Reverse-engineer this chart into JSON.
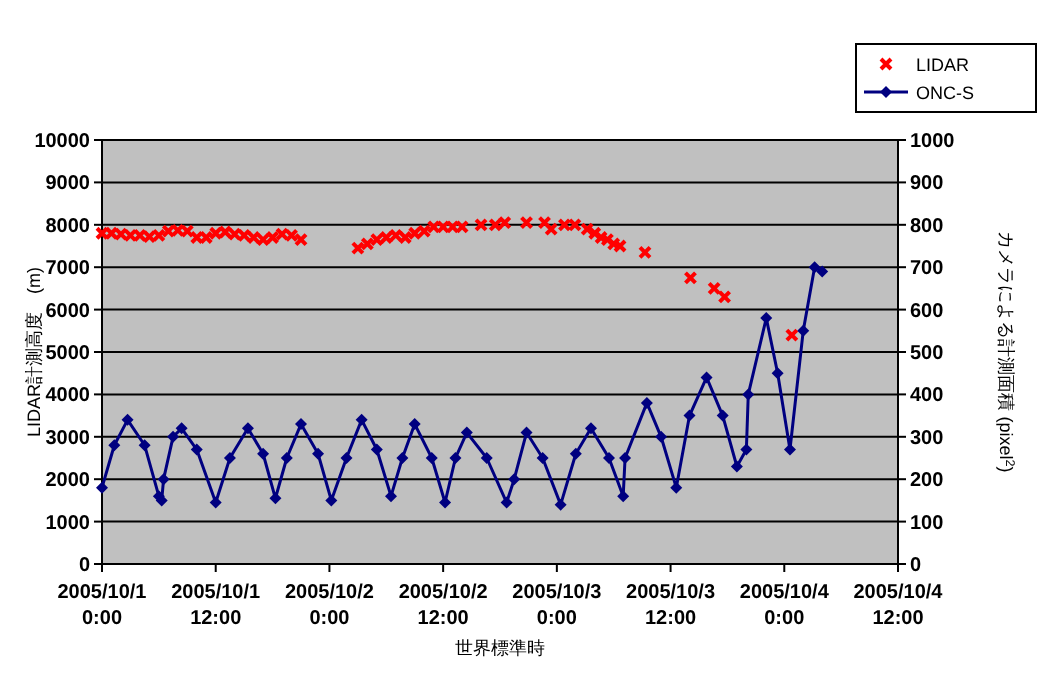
{
  "chart_data": {
    "type": "scatter",
    "xlabel": "世界標準時",
    "ylabel": "LIDAR計測高度　(m)",
    "y2label": "カメラによる計測面積 (pixel$^{2}$)",
    "xlim": [
      "2005-10-01T00:00",
      "2005-10-04T12:00"
    ],
    "xticks": [
      {
        "value": "2005-10-01T00:00",
        "label": "2005/10/1\n0:00"
      },
      {
        "value": "2005-10-01T12:00",
        "label": "2005/10/1\n12:00"
      },
      {
        "value": "2005-10-02T00:00",
        "label": "2005/10/2\n0:00"
      },
      {
        "value": "2005-10-02T12:00",
        "label": "2005/10/2\n12:00"
      },
      {
        "value": "2005-10-03T00:00",
        "label": "2005/10/3\n0:00"
      },
      {
        "value": "2005-10-03T12:00",
        "label": "2005/10/3\n12:00"
      },
      {
        "value": "2005-10-04T00:00",
        "label": "2005/10/4\n0:00"
      },
      {
        "value": "2005-10-04T12:00",
        "label": "2005/10/4\n12:00"
      }
    ],
    "ylim": [
      0,
      10000
    ],
    "yticks": [
      0,
      1000,
      2000,
      3000,
      4000,
      5000,
      6000,
      7000,
      8000,
      9000,
      10000
    ],
    "y2lim": [
      0,
      1000
    ],
    "y2ticks": [
      0,
      100,
      200,
      300,
      400,
      500,
      600,
      700,
      800,
      900,
      1000
    ],
    "grid": "y",
    "legend": "top right",
    "series": [
      {
        "name": "LIDAR",
        "type": "scatter",
        "marker": "cross",
        "color": "#ff0000",
        "x": [
          "2005-10-01T00:00",
          "2005-10-01T01:00",
          "2005-10-01T02:00",
          "2005-10-01T03:00",
          "2005-10-01T04:00",
          "2005-10-01T05:00",
          "2005-10-01T06:00",
          "2005-10-01T07:00",
          "2005-10-01T08:00",
          "2005-10-01T09:00",
          "2005-10-01T10:00",
          "2005-10-01T11:00",
          "2005-10-01T12:00",
          "2005-10-01T13:00",
          "2005-10-01T14:00",
          "2005-10-01T15:00",
          "2005-10-01T16:00",
          "2005-10-01T17:00",
          "2005-10-01T18:00",
          "2005-10-01T19:00",
          "2005-10-01T20:00",
          "2005-10-01T21:00",
          "2005-10-02T03:00",
          "2005-10-02T04:00",
          "2005-10-02T05:00",
          "2005-10-02T06:00",
          "2005-10-02T07:00",
          "2005-10-02T08:00",
          "2005-10-02T09:00",
          "2005-10-02T10:00",
          "2005-10-02T11:00",
          "2005-10-02T12:00",
          "2005-10-02T13:00",
          "2005-10-02T14:00",
          "2005-10-02T16:00",
          "2005-10-02T17:30",
          "2005-10-02T18:30",
          "2005-10-02T20:48",
          "2005-10-02T22:42",
          "2005-10-02T23:24",
          "2005-10-03T00:48",
          "2005-10-03T01:54",
          "2005-10-03T03:12",
          "2005-10-03T04:00",
          "2005-10-03T04:40",
          "2005-10-03T05:20",
          "2005-10-03T06:00",
          "2005-10-03T06:40",
          "2005-10-03T09:18",
          "2005-10-03T14:06",
          "2005-10-03T16:36",
          "2005-10-03T17:42",
          "2005-10-04T00:48"
        ],
        "values": [
          7800,
          7800,
          7780,
          7750,
          7750,
          7720,
          7750,
          7850,
          7870,
          7850,
          7700,
          7700,
          7800,
          7830,
          7780,
          7750,
          7700,
          7650,
          7700,
          7780,
          7750,
          7650,
          7450,
          7550,
          7650,
          7700,
          7750,
          7700,
          7800,
          7850,
          7950,
          7950,
          7950,
          7950,
          8000,
          8000,
          8050,
          8050,
          8050,
          7900,
          8000,
          8000,
          7900,
          7800,
          7700,
          7650,
          7550,
          7500,
          7350,
          6750,
          6500,
          6300,
          5400
        ]
      },
      {
        "name": "ONC-S",
        "type": "line",
        "axis": "y2",
        "marker": "diamond",
        "color": "#000080",
        "x": [
          "2005-10-01T00:00",
          "2005-10-01T01:18",
          "2005-10-01T02:42",
          "2005-10-01T04:30",
          "2005-10-01T06:00",
          "2005-10-01T06:18",
          "2005-10-01T06:30",
          "2005-10-01T07:30",
          "2005-10-01T08:24",
          "2005-10-01T10:00",
          "2005-10-01T12:00",
          "2005-10-01T13:30",
          "2005-10-01T15:24",
          "2005-10-01T17:00",
          "2005-10-01T18:18",
          "2005-10-01T19:30",
          "2005-10-01T21:00",
          "2005-10-01T22:48",
          "2005-10-02T00:12",
          "2005-10-02T01:48",
          "2005-10-02T03:24",
          "2005-10-02T05:00",
          "2005-10-02T06:30",
          "2005-10-02T07:42",
          "2005-10-02T09:00",
          "2005-10-02T10:48",
          "2005-10-02T12:12",
          "2005-10-02T13:18",
          "2005-10-02T14:30",
          "2005-10-02T16:36",
          "2005-10-02T18:42",
          "2005-10-02T19:30",
          "2005-10-02T20:48",
          "2005-10-02T22:30",
          "2005-10-03T00:24",
          "2005-10-03T02:00",
          "2005-10-03T03:36",
          "2005-10-03T05:30",
          "2005-10-03T07:00",
          "2005-10-03T07:12",
          "2005-10-03T09:30",
          "2005-10-03T11:00",
          "2005-10-03T12:36",
          "2005-10-03T14:00",
          "2005-10-03T15:48",
          "2005-10-03T17:30",
          "2005-10-03T19:00",
          "2005-10-03T20:00",
          "2005-10-03T20:12",
          "2005-10-03T22:06",
          "2005-10-03T23:18",
          "2005-10-04T00:36",
          "2005-10-04T02:00",
          "2005-10-04T03:12",
          "2005-10-04T04:00"
        ],
        "values": [
          180,
          280,
          340,
          280,
          160,
          150,
          200,
          300,
          320,
          270,
          145,
          250,
          320,
          260,
          155,
          250,
          330,
          260,
          150,
          250,
          340,
          270,
          160,
          250,
          330,
          250,
          145,
          250,
          310,
          250,
          145,
          200,
          310,
          250,
          140,
          260,
          320,
          250,
          160,
          250,
          380,
          300,
          180,
          350,
          440,
          350,
          230,
          270,
          400,
          580,
          450,
          270,
          550,
          700,
          690
        ]
      }
    ]
  }
}
